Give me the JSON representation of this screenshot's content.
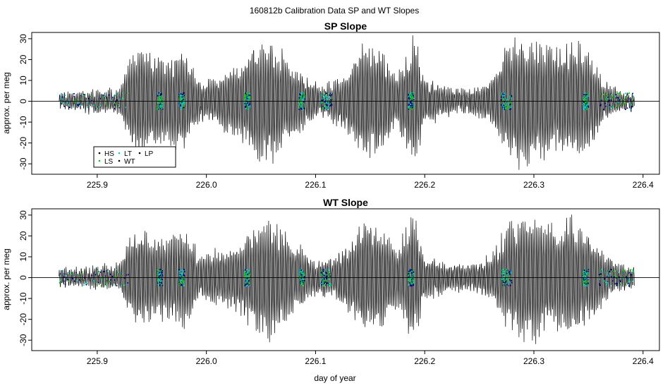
{
  "figure": {
    "suptitle": "160812b   Calibration Data SP and WT Slopes"
  },
  "legend": {
    "entries": [
      {
        "label": "HS",
        "color": "#000000"
      },
      {
        "label": "LS",
        "color": "#00cc00"
      },
      {
        "label": "LT",
        "color": "#00cccc"
      },
      {
        "label": "WT",
        "color": "#000000"
      },
      {
        "label": "LP",
        "color": "#000000"
      }
    ]
  },
  "chart_data": [
    {
      "type": "line",
      "title": "SP Slope",
      "xlabel": "",
      "ylabel": "approx. per meg",
      "xlim": [
        225.84,
        226.415
      ],
      "ylim": [
        -35,
        33
      ],
      "xticks": [
        225.9,
        226.0,
        226.1,
        226.2,
        226.3,
        226.4
      ],
      "xtick_labels": [
        "225.9",
        "226.0",
        "226.1",
        "226.2",
        "226.3",
        "226.4"
      ],
      "yticks": [
        -30,
        -20,
        -10,
        0,
        10,
        20,
        30
      ],
      "ytick_labels": [
        "-30",
        "-20",
        "-10",
        "0",
        "10",
        "20",
        "30"
      ],
      "hline": 0,
      "x_range": [
        225.865,
        226.392
      ],
      "series_colors": [
        "#000000",
        "#00cc00",
        "#00cccc",
        "#00008b"
      ],
      "envelope": {
        "x": [
          225.865,
          225.88,
          225.9,
          225.92,
          225.93,
          225.94,
          225.96,
          225.98,
          225.995,
          226.01,
          226.03,
          226.045,
          226.06,
          226.08,
          226.1,
          226.115,
          226.13,
          226.145,
          226.16,
          226.175,
          226.19,
          226.2,
          226.22,
          226.24,
          226.26,
          226.275,
          226.29,
          226.305,
          226.32,
          226.335,
          226.35,
          226.365,
          226.38,
          226.392
        ],
        "amplitude": [
          4,
          4,
          5,
          5,
          22,
          28,
          22,
          25,
          8,
          12,
          20,
          28,
          30,
          18,
          8,
          10,
          16,
          30,
          26,
          12,
          33,
          12,
          6,
          6,
          10,
          28,
          33,
          30,
          25,
          30,
          25,
          10,
          5,
          4
        ]
      }
    },
    {
      "type": "line",
      "title": "WT Slope",
      "xlabel": "day of year",
      "ylabel": "approx. per meg",
      "xlim": [
        225.84,
        226.415
      ],
      "ylim": [
        -35,
        33
      ],
      "xticks": [
        225.9,
        226.0,
        226.1,
        226.2,
        226.3,
        226.4
      ],
      "xtick_labels": [
        "225.9",
        "226.0",
        "226.1",
        "226.2",
        "226.3",
        "226.4"
      ],
      "yticks": [
        -30,
        -20,
        -10,
        0,
        10,
        20,
        30
      ],
      "ytick_labels": [
        "-30",
        "-20",
        "-10",
        "0",
        "10",
        "20",
        "30"
      ],
      "hline": 0,
      "x_range": [
        225.865,
        226.392
      ],
      "series_colors": [
        "#000000",
        "#00cc00",
        "#00cccc",
        "#00008b"
      ],
      "envelope": {
        "x": [
          225.865,
          225.88,
          225.9,
          225.92,
          225.93,
          225.94,
          225.96,
          225.98,
          225.995,
          226.01,
          226.03,
          226.045,
          226.06,
          226.08,
          226.1,
          226.115,
          226.13,
          226.145,
          226.16,
          226.175,
          226.19,
          226.2,
          226.22,
          226.24,
          226.26,
          226.275,
          226.29,
          226.305,
          226.32,
          226.335,
          226.35,
          226.365,
          226.38,
          226.392
        ],
        "amplitude": [
          4,
          4,
          5,
          6,
          22,
          24,
          20,
          25,
          10,
          14,
          18,
          26,
          30,
          18,
          8,
          10,
          18,
          30,
          26,
          14,
          33,
          12,
          6,
          6,
          10,
          26,
          33,
          30,
          25,
          30,
          24,
          12,
          6,
          4
        ]
      }
    }
  ]
}
